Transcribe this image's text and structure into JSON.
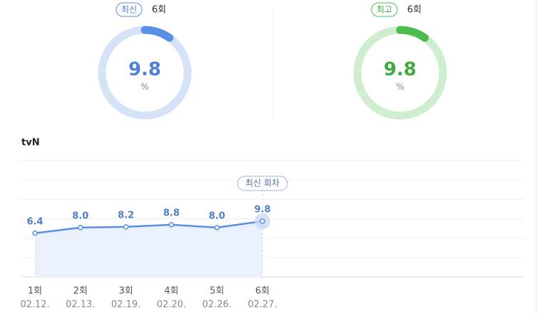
{
  "gauges": [
    {
      "label": "최신",
      "episode": "6회",
      "value": 9.8,
      "value_label": "9.8",
      "unit": "%",
      "color": "#5b8ee6",
      "ring_color": "#d6e2f8",
      "text_color": "#4f80d8"
    },
    {
      "label": "최고",
      "episode": "6회",
      "value": 9.8,
      "value_label": "9.8",
      "unit": "%",
      "color": "#4dbd4d",
      "ring_color": "#cfeecf",
      "text_color": "#3fab3f"
    }
  ],
  "chart_data": {
    "type": "line",
    "title": "tvN",
    "categories": [
      "1회",
      "2회",
      "3회",
      "4회",
      "5회",
      "6회"
    ],
    "dates": [
      "02.12.",
      "02.13.",
      "02.19.",
      "02.20.",
      "02.26.",
      "02.27."
    ],
    "values": [
      6.4,
      8.0,
      8.2,
      8.8,
      8.0,
      9.8
    ],
    "value_labels": [
      "6.4",
      "8.0",
      "8.2",
      "8.8",
      "8.0",
      "9.8"
    ],
    "annotation": "최신 회차",
    "color": "#5b8ee6",
    "ylim": [
      -6,
      27
    ],
    "grid": true
  }
}
